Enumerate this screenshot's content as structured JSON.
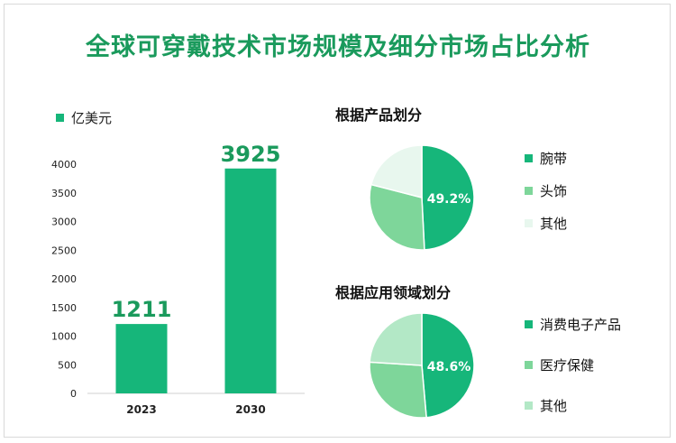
{
  "title": "全球可穿戴技术市场规模及细分市场占比分析",
  "chart_data": [
    {
      "type": "bar",
      "legend": "亿美元",
      "categories": [
        "2023",
        "2030"
      ],
      "values": [
        1211,
        3925
      ],
      "value_labels": [
        "1211",
        "3925"
      ],
      "ylim": [
        0,
        4000
      ],
      "yticks": [
        "0",
        "500",
        "1000",
        "1500",
        "2000",
        "2500",
        "3000",
        "3500",
        "4000"
      ],
      "color": "#16b67a"
    },
    {
      "type": "pie",
      "title": "根据产品划分",
      "labels": [
        "腕带",
        "头饰",
        "其他"
      ],
      "values": [
        49.2,
        29.8,
        21.0
      ],
      "center_label": "49.2%",
      "colors": [
        "#16b67a",
        "#7ed69a",
        "#e8f7ee"
      ]
    },
    {
      "type": "pie",
      "title": "根据应用领域划分",
      "labels": [
        "消费电子产品",
        "医疗保健",
        "其他"
      ],
      "values": [
        48.6,
        27.4,
        24.0
      ],
      "center_label": "48.6%",
      "colors": [
        "#16b67a",
        "#7ed69a",
        "#b3e8c6"
      ]
    }
  ]
}
